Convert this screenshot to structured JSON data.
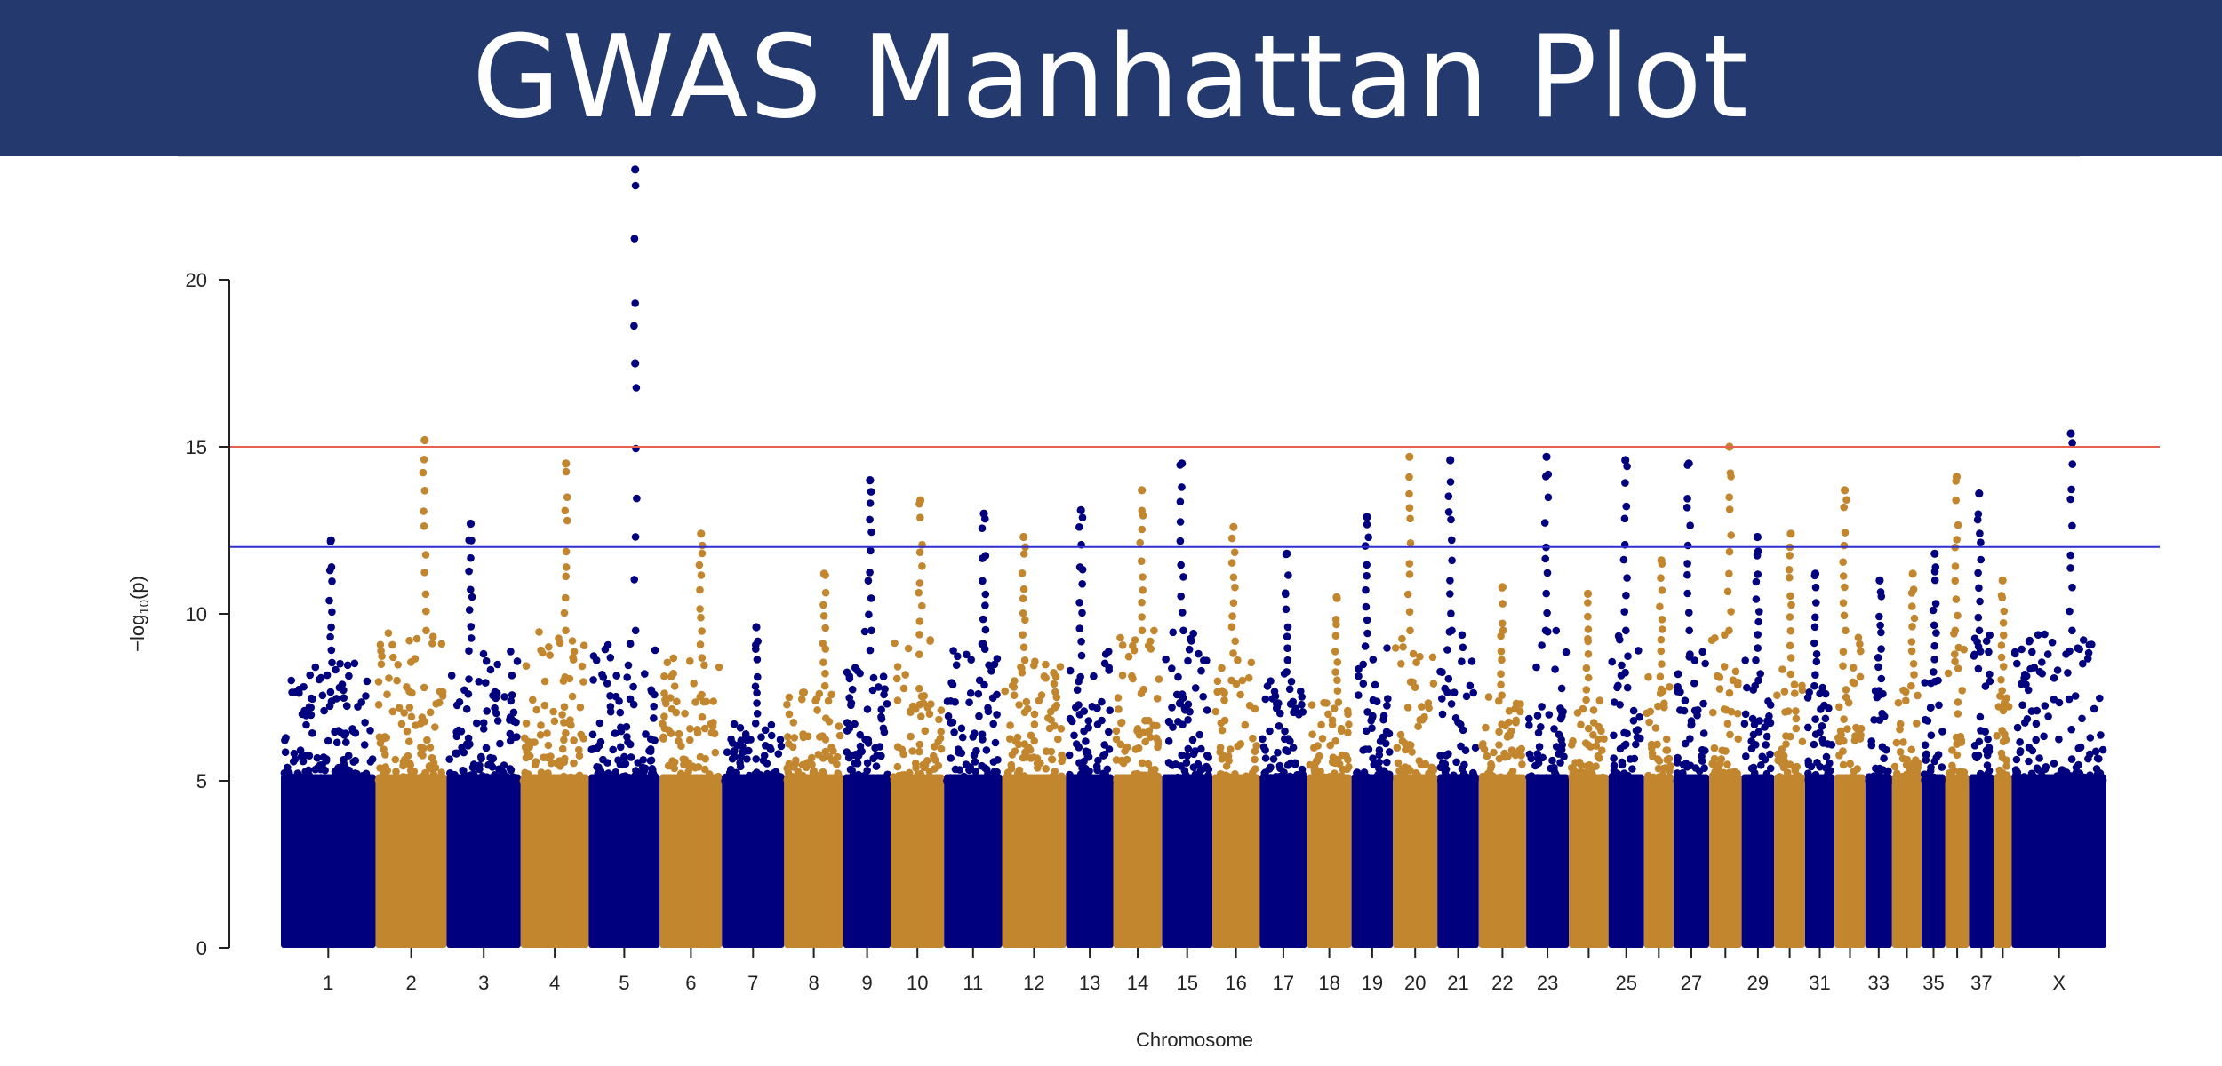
{
  "header": {
    "title": "GWAS Manhattan Plot"
  },
  "colors": {
    "banner": "#243a6e",
    "series_a": "#00007f",
    "series_b": "#c2862f",
    "upper_line": "#e8604f",
    "lower_line": "#2f2fd0"
  },
  "chart_data": {
    "type": "scatter",
    "title": "GWAS Manhattan Plot",
    "xlabel": "Chromosome",
    "ylabel_prefix": "−log",
    "ylabel_sub": "10",
    "ylabel_suffix": "(p)",
    "ylim": [
      0,
      23.5
    ],
    "yticks": [
      0,
      5,
      10,
      15,
      20
    ],
    "threshold_lines": [
      {
        "value": 15,
        "color": "#e8604f"
      },
      {
        "value": 12,
        "color": "#2f2fd0"
      }
    ],
    "chromosomes": [
      {
        "id": "1",
        "label": "1",
        "size": 1.6,
        "color": "#00007f",
        "peak": 12.2
      },
      {
        "id": "2",
        "label": "2",
        "size": 1.2,
        "color": "#c2862f",
        "peak": 15.2
      },
      {
        "id": "3",
        "label": "3",
        "size": 1.25,
        "color": "#00007f",
        "peak": 12.7
      },
      {
        "id": "4",
        "label": "4",
        "size": 1.15,
        "color": "#c2862f",
        "peak": 14.5
      },
      {
        "id": "5",
        "label": "5",
        "size": 1.2,
        "color": "#00007f",
        "peak": 23.3,
        "second": 17.5
      },
      {
        "id": "6",
        "label": "6",
        "size": 1.05,
        "color": "#c2862f",
        "peak": 12.4
      },
      {
        "id": "7",
        "label": "7",
        "size": 1.05,
        "color": "#00007f",
        "peak": 9.6
      },
      {
        "id": "8",
        "label": "8",
        "size": 1.0,
        "color": "#c2862f",
        "peak": 11.2
      },
      {
        "id": "9",
        "label": "9",
        "size": 0.8,
        "color": "#00007f",
        "peak": 14.0
      },
      {
        "id": "10",
        "label": "10",
        "size": 0.9,
        "color": "#c2862f",
        "peak": 13.4
      },
      {
        "id": "11",
        "label": "11",
        "size": 0.98,
        "color": "#00007f",
        "peak": 13.0
      },
      {
        "id": "12",
        "label": "12",
        "size": 1.08,
        "color": "#c2862f",
        "peak": 12.3
      },
      {
        "id": "13",
        "label": "13",
        "size": 0.8,
        "color": "#00007f",
        "peak": 13.1
      },
      {
        "id": "14",
        "label": "14",
        "size": 0.82,
        "color": "#c2862f",
        "peak": 13.7
      },
      {
        "id": "15",
        "label": "15",
        "size": 0.85,
        "color": "#00007f",
        "peak": 14.5
      },
      {
        "id": "16",
        "label": "16",
        "size": 0.8,
        "color": "#c2862f",
        "peak": 12.6
      },
      {
        "id": "17",
        "label": "17",
        "size": 0.8,
        "color": "#00007f",
        "peak": 11.8
      },
      {
        "id": "18",
        "label": "18",
        "size": 0.75,
        "color": "#c2862f",
        "peak": 10.5
      },
      {
        "id": "19",
        "label": "19",
        "size": 0.7,
        "color": "#00007f",
        "peak": 12.9
      },
      {
        "id": "20",
        "label": "20",
        "size": 0.75,
        "color": "#c2862f",
        "peak": 14.7
      },
      {
        "id": "21",
        "label": "21",
        "size": 0.7,
        "color": "#00007f",
        "peak": 14.6
      },
      {
        "id": "22",
        "label": "22",
        "size": 0.8,
        "color": "#c2862f",
        "peak": 10.8
      },
      {
        "id": "23",
        "label": "23",
        "size": 0.72,
        "color": "#00007f",
        "peak": 14.7
      },
      {
        "id": "24",
        "label": "",
        "size": 0.67,
        "color": "#c2862f",
        "peak": 10.6
      },
      {
        "id": "25",
        "label": "25",
        "size": 0.6,
        "color": "#00007f",
        "peak": 14.6
      },
      {
        "id": "26",
        "label": "",
        "size": 0.5,
        "color": "#c2862f",
        "peak": 11.6
      },
      {
        "id": "27",
        "label": "27",
        "size": 0.6,
        "color": "#00007f",
        "peak": 14.5
      },
      {
        "id": "28",
        "label": "",
        "size": 0.55,
        "color": "#c2862f",
        "peak": 15.0
      },
      {
        "id": "29",
        "label": "29",
        "size": 0.55,
        "color": "#00007f",
        "peak": 12.3
      },
      {
        "id": "30",
        "label": "",
        "size": 0.52,
        "color": "#c2862f",
        "peak": 12.4
      },
      {
        "id": "31",
        "label": "31",
        "size": 0.5,
        "color": "#00007f",
        "peak": 11.2
      },
      {
        "id": "32",
        "label": "",
        "size": 0.52,
        "color": "#c2862f",
        "peak": 13.7
      },
      {
        "id": "33",
        "label": "33",
        "size": 0.45,
        "color": "#00007f",
        "peak": 11.0
      },
      {
        "id": "34",
        "label": "",
        "size": 0.5,
        "color": "#c2862f",
        "peak": 11.2
      },
      {
        "id": "35",
        "label": "35",
        "size": 0.4,
        "color": "#00007f",
        "peak": 11.8
      },
      {
        "id": "36",
        "label": "",
        "size": 0.4,
        "color": "#c2862f",
        "peak": 14.1
      },
      {
        "id": "37",
        "label": "37",
        "size": 0.42,
        "color": "#00007f",
        "peak": 13.6
      },
      {
        "id": "38",
        "label": "",
        "size": 0.3,
        "color": "#c2862f",
        "peak": 11.0
      },
      {
        "id": "X",
        "label": "X",
        "size": 1.6,
        "color": "#00007f",
        "peak": 15.4
      }
    ]
  }
}
